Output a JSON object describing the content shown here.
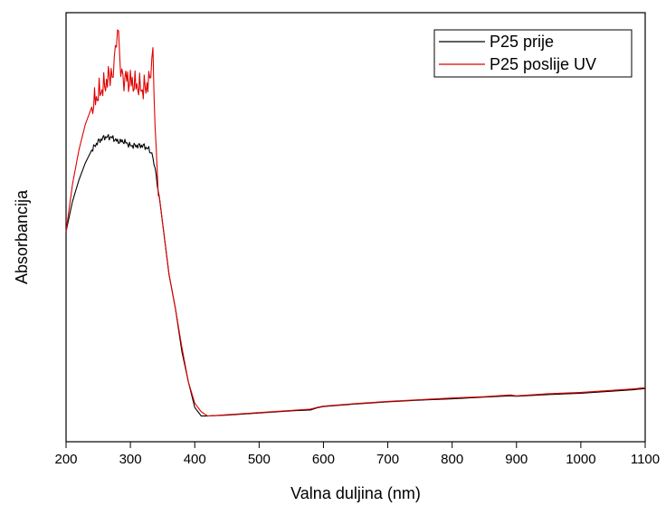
{
  "chart_data": {
    "type": "line",
    "title": "",
    "xlabel": "Valna duljina (nm)",
    "ylabel": "Absorbancija",
    "xlim": [
      200,
      1100
    ],
    "ylim": [
      0,
      1
    ],
    "x_ticks": [
      200,
      300,
      400,
      500,
      600,
      700,
      800,
      900,
      1000,
      1100
    ],
    "y_ticks_shown": false,
    "grid": false,
    "legend_position": "top-right",
    "series": [
      {
        "name": "P25 prije",
        "color": "#000000",
        "x": [
          200,
          210,
          220,
          230,
          240,
          250,
          260,
          270,
          280,
          290,
          300,
          310,
          320,
          330,
          335,
          340,
          345,
          350,
          355,
          360,
          370,
          380,
          390,
          400,
          410,
          420,
          450,
          500,
          550,
          580,
          590,
          600,
          650,
          700,
          750,
          800,
          850,
          890,
          900,
          950,
          1000,
          1050,
          1080,
          1100
        ],
        "y": [
          0.49,
          0.56,
          0.61,
          0.65,
          0.68,
          0.7,
          0.71,
          0.71,
          0.7,
          0.7,
          0.69,
          0.69,
          0.69,
          0.68,
          0.66,
          0.62,
          0.57,
          0.51,
          0.45,
          0.39,
          0.31,
          0.21,
          0.14,
          0.08,
          0.06,
          0.06,
          0.062,
          0.067,
          0.072,
          0.074,
          0.079,
          0.082,
          0.088,
          0.093,
          0.097,
          0.1,
          0.104,
          0.107,
          0.106,
          0.11,
          0.113,
          0.118,
          0.121,
          0.124
        ]
      },
      {
        "name": "P25 poslije UV",
        "color": "#e00000",
        "x": [
          200,
          210,
          220,
          230,
          240,
          250,
          260,
          270,
          275,
          280,
          285,
          290,
          300,
          310,
          320,
          330,
          335,
          340,
          345,
          350,
          355,
          360,
          370,
          380,
          390,
          400,
          410,
          420,
          450,
          500,
          550,
          580,
          590,
          600,
          650,
          700,
          750,
          800,
          850,
          890,
          900,
          950,
          1000,
          1050,
          1080,
          1100
        ],
        "y": [
          0.49,
          0.6,
          0.68,
          0.74,
          0.78,
          0.81,
          0.83,
          0.86,
          0.89,
          0.95,
          0.87,
          0.85,
          0.84,
          0.83,
          0.82,
          0.84,
          0.89,
          0.68,
          0.57,
          0.51,
          0.45,
          0.39,
          0.31,
          0.22,
          0.14,
          0.09,
          0.07,
          0.06,
          0.063,
          0.068,
          0.073,
          0.076,
          0.08,
          0.083,
          0.089,
          0.094,
          0.098,
          0.102,
          0.105,
          0.109,
          0.107,
          0.112,
          0.115,
          0.12,
          0.123,
          0.126
        ]
      }
    ]
  }
}
